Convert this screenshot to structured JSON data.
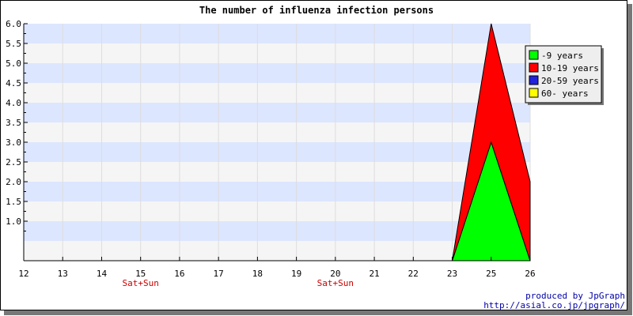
{
  "chart_data": {
    "type": "area",
    "stacked": true,
    "title": "The number of influenza infection persons",
    "xlabel": "",
    "ylabel": "",
    "categories": [
      "12",
      "13",
      "14",
      "15",
      "16",
      "17",
      "18",
      "19",
      "20",
      "21",
      "22",
      "23",
      "25",
      "26"
    ],
    "category_notes": {
      "15": "Sat+Sun",
      "20": "Sat+Sun"
    },
    "ylim": [
      0,
      6.0
    ],
    "yticks": [
      "1.0",
      "1.5",
      "2.0",
      "2.5",
      "3.0",
      "3.5",
      "4.0",
      "4.5",
      "5.0",
      "5.5",
      "6.0"
    ],
    "series": [
      {
        "name": "-9 years",
        "color": "#00ff00",
        "values": [
          0,
          0,
          0,
          0,
          0,
          0,
          0,
          0,
          0,
          0,
          0,
          0,
          3,
          0
        ]
      },
      {
        "name": "10-19 years",
        "color": "#ff0000",
        "values": [
          0,
          0,
          0,
          0,
          0,
          0,
          0,
          0,
          0,
          0,
          0,
          0,
          3,
          2
        ]
      },
      {
        "name": "20-59 years",
        "color": "#2222dd",
        "values": [
          0,
          0,
          0,
          0,
          0,
          0,
          0,
          0,
          0,
          0,
          0,
          0,
          0,
          0
        ]
      },
      {
        "name": "60- years",
        "color": "#ffff00",
        "values": [
          0,
          0,
          0,
          0,
          0,
          0,
          0,
          0,
          0,
          0,
          0,
          0,
          0,
          0
        ]
      }
    ],
    "grid": true,
    "band_colors": [
      "#f5f5f5",
      "#dde6ff"
    ],
    "note_color": "#cc0000",
    "legend_position": "top-right"
  },
  "credits": {
    "line1": "produced by JpGraph",
    "line2": "http://asial.co.jp/jpgraph/"
  }
}
